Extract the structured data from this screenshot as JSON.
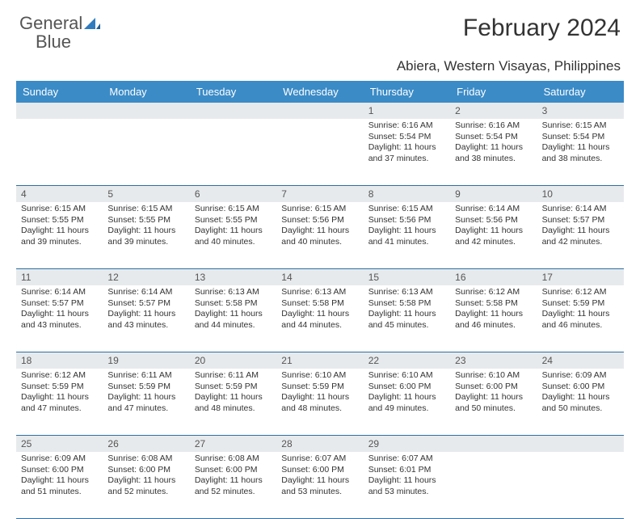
{
  "brand": {
    "name_gray": "General",
    "name_blue": "Blue"
  },
  "title": "February 2024",
  "location": "Abiera, Western Visayas, Philippines",
  "colors": {
    "header_bg": "#3b8bc7",
    "header_text": "#ffffff",
    "row_divider": "#2f6fa3",
    "daynum_bg": "#e7eaec",
    "body_text": "#333333",
    "logo_gray": "#555555",
    "logo_blue": "#2f7bbf",
    "page_bg": "#ffffff"
  },
  "day_names": [
    "Sunday",
    "Monday",
    "Tuesday",
    "Wednesday",
    "Thursday",
    "Friday",
    "Saturday"
  ],
  "weeks": [
    [
      {
        "n": "",
        "sr": "",
        "ss": "",
        "dl1": "",
        "dl2": ""
      },
      {
        "n": "",
        "sr": "",
        "ss": "",
        "dl1": "",
        "dl2": ""
      },
      {
        "n": "",
        "sr": "",
        "ss": "",
        "dl1": "",
        "dl2": ""
      },
      {
        "n": "",
        "sr": "",
        "ss": "",
        "dl1": "",
        "dl2": ""
      },
      {
        "n": "1",
        "sr": "Sunrise: 6:16 AM",
        "ss": "Sunset: 5:54 PM",
        "dl1": "Daylight: 11 hours",
        "dl2": "and 37 minutes."
      },
      {
        "n": "2",
        "sr": "Sunrise: 6:16 AM",
        "ss": "Sunset: 5:54 PM",
        "dl1": "Daylight: 11 hours",
        "dl2": "and 38 minutes."
      },
      {
        "n": "3",
        "sr": "Sunrise: 6:15 AM",
        "ss": "Sunset: 5:54 PM",
        "dl1": "Daylight: 11 hours",
        "dl2": "and 38 minutes."
      }
    ],
    [
      {
        "n": "4",
        "sr": "Sunrise: 6:15 AM",
        "ss": "Sunset: 5:55 PM",
        "dl1": "Daylight: 11 hours",
        "dl2": "and 39 minutes."
      },
      {
        "n": "5",
        "sr": "Sunrise: 6:15 AM",
        "ss": "Sunset: 5:55 PM",
        "dl1": "Daylight: 11 hours",
        "dl2": "and 39 minutes."
      },
      {
        "n": "6",
        "sr": "Sunrise: 6:15 AM",
        "ss": "Sunset: 5:55 PM",
        "dl1": "Daylight: 11 hours",
        "dl2": "and 40 minutes."
      },
      {
        "n": "7",
        "sr": "Sunrise: 6:15 AM",
        "ss": "Sunset: 5:56 PM",
        "dl1": "Daylight: 11 hours",
        "dl2": "and 40 minutes."
      },
      {
        "n": "8",
        "sr": "Sunrise: 6:15 AM",
        "ss": "Sunset: 5:56 PM",
        "dl1": "Daylight: 11 hours",
        "dl2": "and 41 minutes."
      },
      {
        "n": "9",
        "sr": "Sunrise: 6:14 AM",
        "ss": "Sunset: 5:56 PM",
        "dl1": "Daylight: 11 hours",
        "dl2": "and 42 minutes."
      },
      {
        "n": "10",
        "sr": "Sunrise: 6:14 AM",
        "ss": "Sunset: 5:57 PM",
        "dl1": "Daylight: 11 hours",
        "dl2": "and 42 minutes."
      }
    ],
    [
      {
        "n": "11",
        "sr": "Sunrise: 6:14 AM",
        "ss": "Sunset: 5:57 PM",
        "dl1": "Daylight: 11 hours",
        "dl2": "and 43 minutes."
      },
      {
        "n": "12",
        "sr": "Sunrise: 6:14 AM",
        "ss": "Sunset: 5:57 PM",
        "dl1": "Daylight: 11 hours",
        "dl2": "and 43 minutes."
      },
      {
        "n": "13",
        "sr": "Sunrise: 6:13 AM",
        "ss": "Sunset: 5:58 PM",
        "dl1": "Daylight: 11 hours",
        "dl2": "and 44 minutes."
      },
      {
        "n": "14",
        "sr": "Sunrise: 6:13 AM",
        "ss": "Sunset: 5:58 PM",
        "dl1": "Daylight: 11 hours",
        "dl2": "and 44 minutes."
      },
      {
        "n": "15",
        "sr": "Sunrise: 6:13 AM",
        "ss": "Sunset: 5:58 PM",
        "dl1": "Daylight: 11 hours",
        "dl2": "and 45 minutes."
      },
      {
        "n": "16",
        "sr": "Sunrise: 6:12 AM",
        "ss": "Sunset: 5:58 PM",
        "dl1": "Daylight: 11 hours",
        "dl2": "and 46 minutes."
      },
      {
        "n": "17",
        "sr": "Sunrise: 6:12 AM",
        "ss": "Sunset: 5:59 PM",
        "dl1": "Daylight: 11 hours",
        "dl2": "and 46 minutes."
      }
    ],
    [
      {
        "n": "18",
        "sr": "Sunrise: 6:12 AM",
        "ss": "Sunset: 5:59 PM",
        "dl1": "Daylight: 11 hours",
        "dl2": "and 47 minutes."
      },
      {
        "n": "19",
        "sr": "Sunrise: 6:11 AM",
        "ss": "Sunset: 5:59 PM",
        "dl1": "Daylight: 11 hours",
        "dl2": "and 47 minutes."
      },
      {
        "n": "20",
        "sr": "Sunrise: 6:11 AM",
        "ss": "Sunset: 5:59 PM",
        "dl1": "Daylight: 11 hours",
        "dl2": "and 48 minutes."
      },
      {
        "n": "21",
        "sr": "Sunrise: 6:10 AM",
        "ss": "Sunset: 5:59 PM",
        "dl1": "Daylight: 11 hours",
        "dl2": "and 48 minutes."
      },
      {
        "n": "22",
        "sr": "Sunrise: 6:10 AM",
        "ss": "Sunset: 6:00 PM",
        "dl1": "Daylight: 11 hours",
        "dl2": "and 49 minutes."
      },
      {
        "n": "23",
        "sr": "Sunrise: 6:10 AM",
        "ss": "Sunset: 6:00 PM",
        "dl1": "Daylight: 11 hours",
        "dl2": "and 50 minutes."
      },
      {
        "n": "24",
        "sr": "Sunrise: 6:09 AM",
        "ss": "Sunset: 6:00 PM",
        "dl1": "Daylight: 11 hours",
        "dl2": "and 50 minutes."
      }
    ],
    [
      {
        "n": "25",
        "sr": "Sunrise: 6:09 AM",
        "ss": "Sunset: 6:00 PM",
        "dl1": "Daylight: 11 hours",
        "dl2": "and 51 minutes."
      },
      {
        "n": "26",
        "sr": "Sunrise: 6:08 AM",
        "ss": "Sunset: 6:00 PM",
        "dl1": "Daylight: 11 hours",
        "dl2": "and 52 minutes."
      },
      {
        "n": "27",
        "sr": "Sunrise: 6:08 AM",
        "ss": "Sunset: 6:00 PM",
        "dl1": "Daylight: 11 hours",
        "dl2": "and 52 minutes."
      },
      {
        "n": "28",
        "sr": "Sunrise: 6:07 AM",
        "ss": "Sunset: 6:00 PM",
        "dl1": "Daylight: 11 hours",
        "dl2": "and 53 minutes."
      },
      {
        "n": "29",
        "sr": "Sunrise: 6:07 AM",
        "ss": "Sunset: 6:01 PM",
        "dl1": "Daylight: 11 hours",
        "dl2": "and 53 minutes."
      },
      {
        "n": "",
        "sr": "",
        "ss": "",
        "dl1": "",
        "dl2": ""
      },
      {
        "n": "",
        "sr": "",
        "ss": "",
        "dl1": "",
        "dl2": ""
      }
    ]
  ]
}
